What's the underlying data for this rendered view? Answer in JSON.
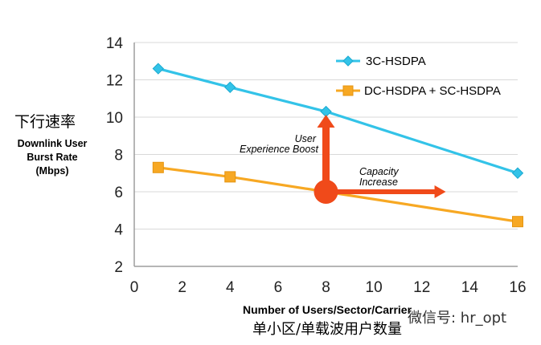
{
  "chart_data": {
    "type": "line",
    "x": [
      1,
      4,
      8,
      16
    ],
    "series": [
      {
        "name": "3C-HSDPA",
        "values": [
          12.6,
          11.6,
          10.3,
          7.0
        ],
        "color": "#33c3e8",
        "marker": "diamond"
      },
      {
        "name": "DC-HSDPA + SC-HSDPA",
        "values": [
          7.3,
          6.8,
          6.0,
          4.4
        ],
        "color": "#f7a823",
        "marker": "square"
      }
    ],
    "xlim": [
      0,
      16
    ],
    "ylim": [
      2,
      14
    ],
    "xticks": [
      "0",
      "2",
      "4",
      "6",
      "8",
      "10",
      "12",
      "14",
      "16"
    ],
    "yticks": [
      "2",
      "4",
      "6",
      "8",
      "10",
      "12",
      "14"
    ],
    "ylabel_cn": "下行速率",
    "ylabel_en": [
      "Downlink User",
      "Burst Rate",
      "(Mbps)"
    ],
    "xlabel_en": "Number of Users/Sector/Carrier",
    "xlabel_cn": "单小区/单载波用户数量",
    "grid": "horizontal",
    "legend_position": "top-right",
    "annotations": {
      "user_boost": [
        "User",
        "Experience Boost"
      ],
      "capacity": [
        "Capacity",
        "Increase"
      ],
      "arrow_color": "#f04a1a",
      "origin": {
        "x": 8,
        "y": 6.0
      },
      "up_to_y": 10.3,
      "right_to_x": 13
    }
  },
  "watermark": "微信号: hr_opt"
}
